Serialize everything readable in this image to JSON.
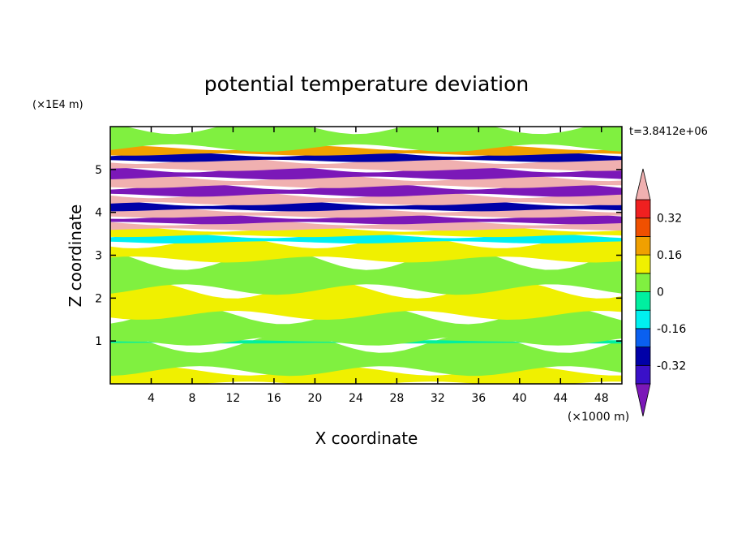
{
  "chart_data": {
    "type": "heatmap",
    "title": "potential temperature deviation",
    "xlabel": "X coordinate",
    "ylabel": "Z coordinate",
    "x_unit": "(×1000 m)",
    "y_unit": "(×1E4 m)",
    "time_label": "t=3.8412e+06",
    "xlim": [
      0,
      50
    ],
    "ylim": [
      0,
      6
    ],
    "x_ticks": [
      4,
      8,
      12,
      16,
      20,
      24,
      28,
      32,
      36,
      40,
      44,
      48
    ],
    "y_ticks": [
      1,
      2,
      3,
      4,
      5
    ],
    "grid": false,
    "colorbar": {
      "placement": "right",
      "extend": "both",
      "levels": [
        -0.4,
        -0.32,
        -0.24,
        -0.16,
        -0.08,
        0,
        0.08,
        0.16,
        0.24,
        0.32,
        0.4
      ],
      "colors": [
        "#7b18b8",
        "#3a10c8",
        "#0000a8",
        "#0a60f0",
        "#00f0f0",
        "#00f0a0",
        "#80f040",
        "#f0f000",
        "#f0a000",
        "#f05000",
        "#f02020",
        "#f0b0b0"
      ],
      "tick_labels": [
        "0.32",
        "0.16",
        "0",
        "-0.16",
        "-0.32"
      ],
      "tick_values": [
        0.32,
        0.16,
        0,
        -0.16,
        -0.32
      ]
    },
    "bands": [
      {
        "z_min": 0.0,
        "z_max": 0.3,
        "value": 0.08
      },
      {
        "z_min": 0.3,
        "z_max": 0.95,
        "value": 0.04
      },
      {
        "z_min": 0.95,
        "z_max": 1.0,
        "value": -0.02
      },
      {
        "z_min": 1.0,
        "z_max": 1.6,
        "value": 0.04
      },
      {
        "z_min": 1.6,
        "z_max": 2.2,
        "value": 0.08
      },
      {
        "z_min": 2.2,
        "z_max": 2.9,
        "value": 0.04
      },
      {
        "z_min": 2.9,
        "z_max": 3.3,
        "value": 0.08
      },
      {
        "z_min": 3.3,
        "z_max": 3.45,
        "value": -0.1
      },
      {
        "z_min": 3.45,
        "z_max": 3.6,
        "value": 0.08
      },
      {
        "z_min": 3.6,
        "z_max": 3.75,
        "value": 0.42
      },
      {
        "z_min": 3.75,
        "z_max": 3.9,
        "value": -0.42
      },
      {
        "z_min": 3.9,
        "z_max": 4.05,
        "value": 0.42
      },
      {
        "z_min": 4.05,
        "z_max": 4.2,
        "value": -0.3
      },
      {
        "z_min": 4.2,
        "z_max": 4.4,
        "value": 0.42
      },
      {
        "z_min": 4.4,
        "z_max": 4.6,
        "value": -0.42
      },
      {
        "z_min": 4.6,
        "z_max": 4.8,
        "value": 0.42
      },
      {
        "z_min": 4.8,
        "z_max": 5.0,
        "value": -0.42
      },
      {
        "z_min": 5.0,
        "z_max": 5.2,
        "value": 0.42
      },
      {
        "z_min": 5.2,
        "z_max": 5.35,
        "value": -0.3
      },
      {
        "z_min": 5.35,
        "z_max": 5.5,
        "value": 0.2
      },
      {
        "z_min": 5.5,
        "z_max": 6.0,
        "value": 0.04
      }
    ]
  }
}
